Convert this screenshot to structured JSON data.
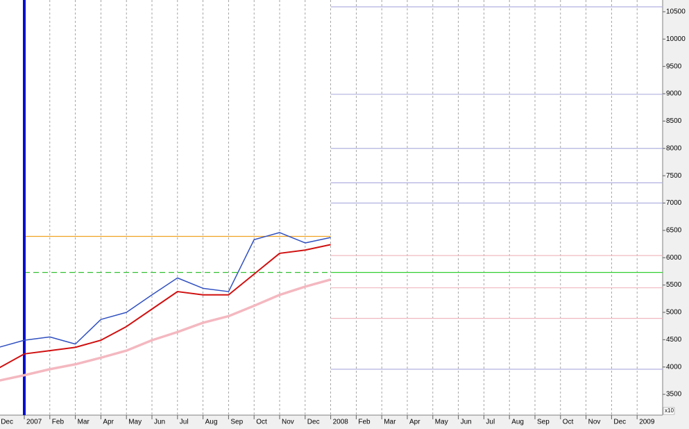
{
  "chart_data": {
    "type": "line",
    "categories": [
      "Dec",
      "2007",
      "Feb",
      "Mar",
      "Apr",
      "May",
      "Jun",
      "Jul",
      "Aug",
      "Sep",
      "Oct",
      "Nov",
      "Dec",
      "2008",
      "Feb",
      "Mar",
      "Apr",
      "May",
      "Jun",
      "Jul",
      "Aug",
      "Sep",
      "Oct",
      "Nov",
      "Dec",
      "2009"
    ],
    "series": [
      {
        "color": "#3050c0",
        "width": 1.5,
        "values": [
          4360,
          4490,
          4550,
          4420,
          4870,
          5000,
          5320,
          5630,
          5440,
          5380,
          6330,
          6460,
          6270,
          6370,
          null,
          null,
          null,
          null,
          null,
          null,
          null,
          null,
          null,
          null,
          null,
          null
        ]
      },
      {
        "color": "#d01010",
        "width": 2,
        "values": [
          3980,
          4240,
          4300,
          4360,
          4490,
          4740,
          5060,
          5380,
          5320,
          5320,
          5700,
          6080,
          6140,
          6240,
          null,
          null,
          null,
          null,
          null,
          null,
          null,
          null,
          null,
          null,
          null,
          null
        ]
      },
      {
        "color": "#f4b8c0",
        "width": 3.5,
        "values": [
          3750,
          3850,
          3960,
          4050,
          4170,
          4300,
          4490,
          4640,
          4810,
          4930,
          5120,
          5320,
          5470,
          5600,
          null,
          null,
          null,
          null,
          null,
          null,
          null,
          null,
          null,
          null,
          null,
          null
        ]
      }
    ],
    "levels": [
      {
        "value": 6390,
        "color": "#f0a020",
        "dash": false,
        "span": "left"
      },
      {
        "value": 5730,
        "color": "#30c030",
        "dash": true,
        "span": "left"
      },
      {
        "value": 5730,
        "color": "#30d030",
        "dash": false,
        "span": "right"
      },
      {
        "value": 10590,
        "color": "#b0b0e0",
        "dash": false,
        "span": "right"
      },
      {
        "value": 8990,
        "color": "#b0b0e0",
        "dash": false,
        "span": "right"
      },
      {
        "value": 8000,
        "color": "#b0b0e0",
        "dash": false,
        "span": "right"
      },
      {
        "value": 7370,
        "color": "#b0b0e0",
        "dash": false,
        "span": "right"
      },
      {
        "value": 7000,
        "color": "#b0b0e0",
        "dash": false,
        "span": "right"
      },
      {
        "value": 6040,
        "color": "#f0b8c0",
        "dash": false,
        "span": "right"
      },
      {
        "value": 5450,
        "color": "#f0b8c0",
        "dash": false,
        "span": "right"
      },
      {
        "value": 4890,
        "color": "#f0b8c0",
        "dash": false,
        "span": "right"
      },
      {
        "value": 3960,
        "color": "#b0b0e0",
        "dash": false,
        "span": "right"
      }
    ],
    "vline_category": "2007",
    "vline_color": "#0010d0",
    "split_category": "2008",
    "ylim": [
      3120,
      10715
    ],
    "yticks": [
      3500,
      4000,
      4500,
      5000,
      5500,
      6000,
      6500,
      7000,
      7500,
      8000,
      8500,
      9000,
      9500,
      10000,
      10500
    ],
    "scale_note": "x10"
  }
}
